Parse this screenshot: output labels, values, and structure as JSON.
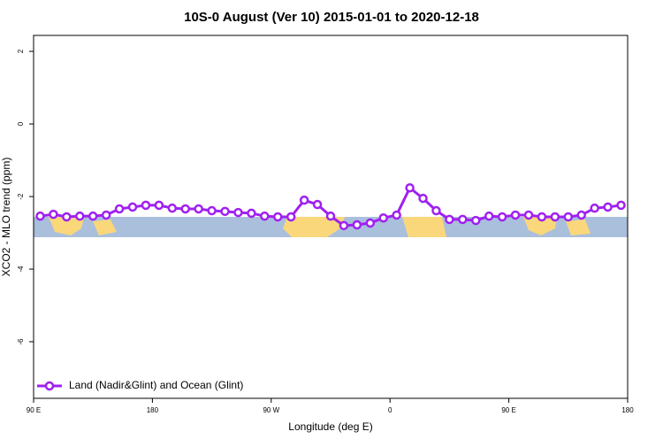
{
  "chart_data": {
    "type": "line",
    "title": "10S-0 August (Ver 10)   2015-01-01 to 2020-12-18",
    "x_label": "Longitude (deg E)",
    "y_label": "XCO2 - MLO trend (ppm)",
    "xlim": [
      90,
      540
    ],
    "ylim": [
      -7.56,
      2.44
    ],
    "xticks": [
      {
        "value": 90,
        "label": "90 E"
      },
      180,
      {
        "value": 270,
        "label": "90 W"
      },
      {
        "value": 360,
        "label": "0"
      },
      {
        "value": 450,
        "label": "90 E"
      },
      {
        "value": 540,
        "label": "180"
      }
    ],
    "yticks": [
      2,
      0,
      -2,
      -4,
      -6
    ],
    "legend": "bottom-left",
    "x": [
      95,
      105,
      115,
      125,
      135,
      145,
      155,
      165,
      175,
      185,
      195,
      205,
      215,
      225,
      235,
      245,
      255,
      265,
      275,
      285,
      295,
      305,
      315,
      325,
      335,
      345,
      355,
      365,
      375,
      385,
      395,
      405,
      415,
      425,
      435,
      445,
      455,
      465,
      475,
      485,
      495,
      505,
      515,
      525,
      535
    ],
    "series": [
      {
        "name": "Land (Nadir&Glint) and Ocean (Glint)",
        "color": "#a020f0",
        "values": [
          -2.54,
          -2.49,
          -2.56,
          -2.54,
          -2.54,
          -2.51,
          -2.34,
          -2.29,
          -2.24,
          -2.24,
          -2.32,
          -2.34,
          -2.34,
          -2.39,
          -2.41,
          -2.44,
          -2.46,
          -2.54,
          -2.56,
          -2.56,
          -2.1,
          -2.22,
          -2.54,
          -2.8,
          -2.78,
          -2.73,
          -2.59,
          -2.51,
          -1.76,
          -2.05,
          -2.39,
          -2.63,
          -2.63,
          -2.66,
          -2.54,
          -2.56,
          -2.51,
          -2.51,
          -2.56,
          -2.56,
          -2.56,
          -2.51,
          -2.32,
          -2.29,
          -2.24
        ]
      }
    ]
  }
}
